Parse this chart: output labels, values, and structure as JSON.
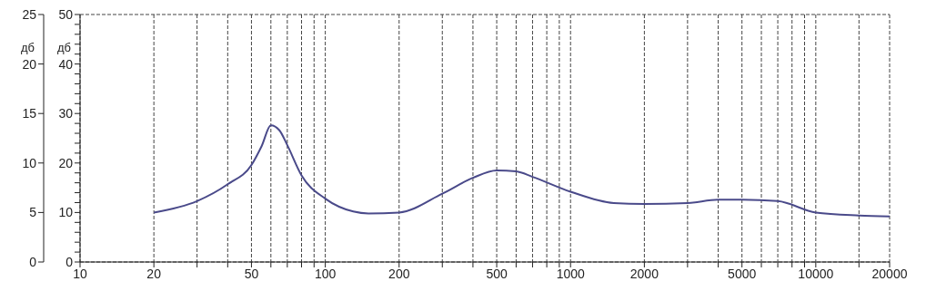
{
  "chart_data": {
    "type": "line",
    "ylabel": "дб",
    "y2label": "дб",
    "x": [
      20,
      30,
      40,
      50,
      55,
      60,
      65,
      70,
      80,
      100,
      130,
      150,
      200,
      300,
      400,
      500,
      600,
      700,
      1000,
      1500,
      2000,
      3000,
      4000,
      5000,
      7000,
      10000,
      15000,
      20000
    ],
    "series": [
      {
        "color": "#4a4a8a",
        "values": [
          10,
          12.3,
          15.7,
          19.6,
          23.4,
          27.6,
          26.6,
          23.6,
          17.5,
          12.8,
          10.2,
          9.8,
          10,
          13.8,
          17,
          18.5,
          18.3,
          17.2,
          14.2,
          11.9,
          11.7,
          11.9,
          12.6,
          12.6,
          12.3,
          10,
          9.4,
          9.2
        ]
      }
    ],
    "log": "x",
    "xlim": [
      10,
      20000
    ],
    "xticks": [
      10,
      20,
      {
        "value": 30,
        "label": null
      },
      {
        "value": 40,
        "label": null
      },
      50,
      {
        "value": 60,
        "label": null
      },
      {
        "value": 70,
        "label": null
      },
      {
        "value": 80,
        "label": null
      },
      {
        "value": 90,
        "label": null
      },
      100,
      200,
      {
        "value": 300,
        "label": null
      },
      {
        "value": 400,
        "label": null
      },
      500,
      {
        "value": 600,
        "label": null
      },
      {
        "value": 700,
        "label": null
      },
      {
        "value": 800,
        "label": null
      },
      {
        "value": 900,
        "label": null
      },
      1000,
      2000,
      {
        "value": 3000,
        "label": null
      },
      {
        "value": 4000,
        "label": null
      },
      5000,
      {
        "value": 6000,
        "label": null
      },
      {
        "value": 7000,
        "label": null
      },
      {
        "value": 8000,
        "label": null
      },
      {
        "value": 9000,
        "label": null
      },
      10000,
      {
        "value": 15000,
        "label": null
      },
      20000
    ],
    "ylim": [
      0,
      50
    ],
    "yticks": [
      0,
      {
        "value": 2,
        "label": null
      },
      {
        "value": 4,
        "label": null
      },
      {
        "value": 6,
        "label": null
      },
      {
        "value": 8,
        "label": null
      },
      10,
      {
        "value": 12,
        "label": null
      },
      {
        "value": 14,
        "label": null
      },
      {
        "value": 16,
        "label": null
      },
      {
        "value": 18,
        "label": null
      },
      20,
      {
        "value": 22,
        "label": null
      },
      {
        "value": 24,
        "label": null
      },
      {
        "value": 26,
        "label": null
      },
      {
        "value": 28,
        "label": null
      },
      30,
      {
        "value": 32,
        "label": null
      },
      {
        "value": 34,
        "label": null
      },
      {
        "value": 36,
        "label": null
      },
      {
        "value": 38,
        "label": null
      },
      40,
      {
        "value": 42,
        "label": null
      },
      {
        "value": 44,
        "label": null
      },
      {
        "value": 46,
        "label": null
      },
      {
        "value": 48,
        "label": null
      },
      50
    ],
    "y2lim": [
      0,
      25
    ],
    "y2ticks": [
      0,
      5,
      10,
      15,
      20,
      25
    ],
    "grid": true,
    "marker": "none",
    "line_style": "solid"
  }
}
